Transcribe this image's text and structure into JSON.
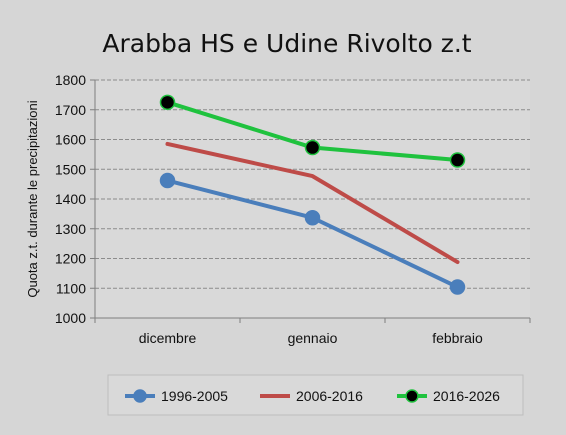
{
  "chart_data": {
    "type": "line",
    "title": "Arabba HS e Udine Rivolto z.t",
    "xlabel": "",
    "ylabel": "Quota z.t. durante le precipitazioni",
    "categories": [
      "dicembre",
      "gennaio",
      "febbraio"
    ],
    "ylim": [
      1000,
      1800
    ],
    "yticks": [
      1000,
      1100,
      1200,
      1300,
      1400,
      1500,
      1600,
      1700,
      1800
    ],
    "grid": true,
    "legend_position": "bottom",
    "series": [
      {
        "name": "1996-2005",
        "values": [
          1462,
          1337,
          1104
        ],
        "color": "#4a7ebb",
        "marker": "circle",
        "marker_fill": "#4a7ebb"
      },
      {
        "name": "2006-2016",
        "values": [
          1585,
          1477,
          1188
        ],
        "color": "#be4b48",
        "marker": "none"
      },
      {
        "name": "2016-2026",
        "values": [
          1725,
          1573,
          1531
        ],
        "color": "#1fc23e",
        "marker": "circle",
        "marker_fill": "#000000"
      }
    ]
  }
}
